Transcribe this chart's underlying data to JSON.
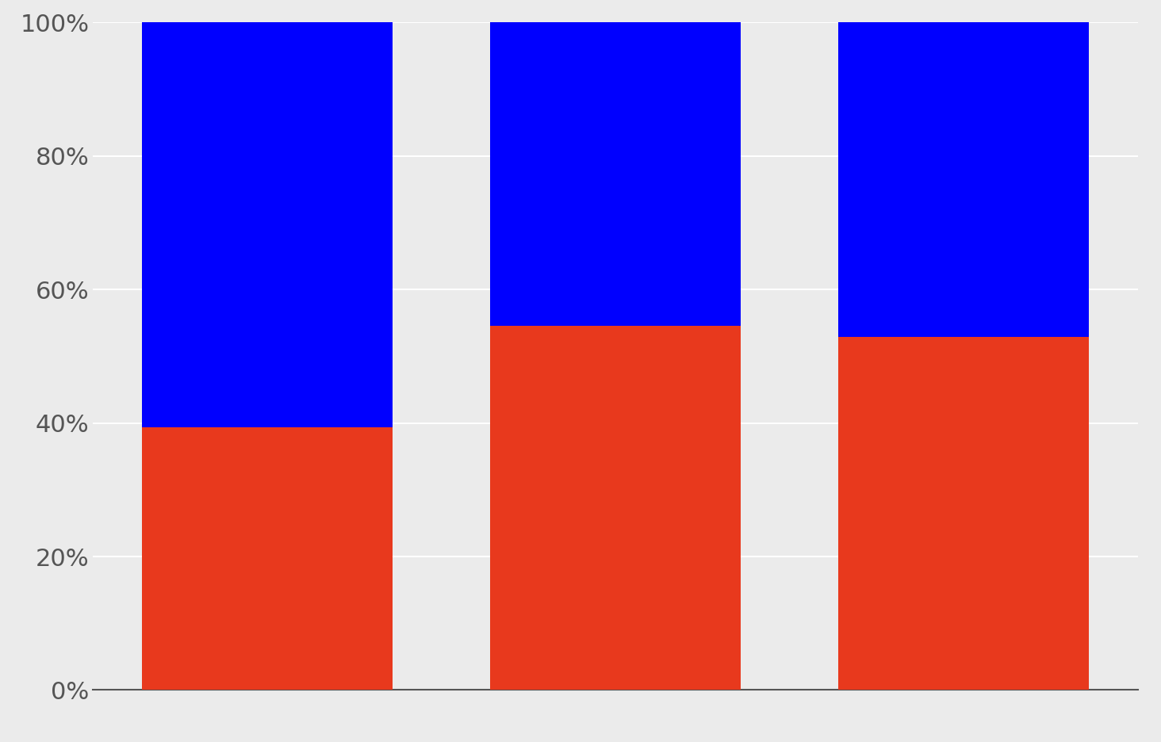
{
  "bars": [
    {
      "red": 0.3938,
      "blue": 0.6063
    },
    {
      "red": 0.5455,
      "blue": 0.4545
    },
    {
      "red": 0.5294,
      "blue": 0.4706
    }
  ],
  "bar_positions": [
    1,
    2,
    3
  ],
  "bar_width": 0.72,
  "colors": {
    "red": "#E8391D",
    "blue": "#0000FF"
  },
  "background_color": "#EBEBEB",
  "yticks": [
    0,
    0.2,
    0.4,
    0.6,
    0.8,
    1.0
  ],
  "ytick_labels": [
    "0%",
    "20%",
    "40%",
    "60%",
    "80%",
    "100%"
  ],
  "ylim": [
    0,
    1.0
  ],
  "xlim": [
    0.5,
    3.5
  ]
}
